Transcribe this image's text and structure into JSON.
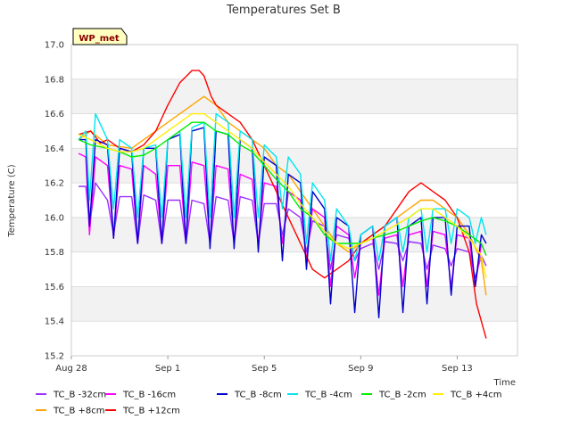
{
  "chart_data": {
    "type": "line",
    "title": "Temperatures Set B",
    "xlabel": "Time",
    "ylabel": "Temperature (C)",
    "badge": "WP_met",
    "x_unit": "days since Aug 28",
    "xlim": [
      0,
      18.5
    ],
    "ylim": [
      15.2,
      17.0
    ],
    "y_ticks": [
      15.2,
      15.4,
      15.6,
      15.8,
      16.0,
      16.2,
      16.4,
      16.6,
      16.8,
      17.0
    ],
    "y_tick_labels": [
      "15.2",
      "15.4",
      "15.6",
      "15.8",
      "16.0",
      "16.2",
      "16.4",
      "16.6",
      "16.8",
      "17.0"
    ],
    "x_ticks": [
      {
        "x": 0,
        "label": "Aug 28"
      },
      {
        "x": 4,
        "label": "Sep 1"
      },
      {
        "x": 8,
        "label": "Sep 5"
      },
      {
        "x": 12,
        "label": "Sep 9"
      },
      {
        "x": 16,
        "label": "Sep 13"
      }
    ],
    "grid": true,
    "legend_position": "bottom",
    "series": [
      {
        "name": "TC_B -32cm",
        "color": "#9b30ff",
        "x": [
          0.3,
          0.6,
          0.75,
          1,
          1.5,
          1.75,
          2,
          2.5,
          2.75,
          3,
          3.5,
          3.75,
          4,
          4.5,
          4.75,
          5,
          5.5,
          5.75,
          6,
          6.5,
          6.75,
          7,
          7.5,
          7.75,
          8,
          8.5,
          8.75,
          9,
          9.5,
          9.75,
          10,
          10.5,
          10.75,
          11,
          11.5,
          11.75,
          12,
          12.5,
          12.75,
          13,
          13.5,
          13.75,
          14,
          14.5,
          14.75,
          15,
          15.5,
          15.75,
          16,
          16.5,
          16.75,
          17,
          17.2
        ],
        "y": [
          16.18,
          16.18,
          15.95,
          16.2,
          16.1,
          15.9,
          16.12,
          16.12,
          15.85,
          16.13,
          16.1,
          15.85,
          16.1,
          16.1,
          15.85,
          16.1,
          16.08,
          15.85,
          16.12,
          16.1,
          15.85,
          16.12,
          16.1,
          15.85,
          16.08,
          16.08,
          15.9,
          16.05,
          16.0,
          15.8,
          15.98,
          15.95,
          15.7,
          15.9,
          15.88,
          15.75,
          15.82,
          15.85,
          15.7,
          15.86,
          15.85,
          15.75,
          15.86,
          15.85,
          15.7,
          15.84,
          15.82,
          15.72,
          15.82,
          15.8,
          15.65,
          15.78,
          15.72
        ]
      },
      {
        "name": "TC_B +8cm",
        "color": "#ffa500",
        "x": [
          0.3,
          0.8,
          1.5,
          2.5,
          3,
          3.5,
          4,
          4.5,
          5,
          5.5,
          6,
          6.5,
          7,
          7.5,
          8,
          8.5,
          9,
          9.5,
          10,
          10.5,
          11,
          11.5,
          12,
          12.5,
          13,
          13.5,
          14,
          14.5,
          15,
          15.5,
          16,
          16.5,
          17,
          17.2
        ],
        "y": [
          16.45,
          16.5,
          16.42,
          16.4,
          16.45,
          16.5,
          16.55,
          16.6,
          16.65,
          16.7,
          16.65,
          16.55,
          16.5,
          16.45,
          16.4,
          16.3,
          16.25,
          16.15,
          16.05,
          15.95,
          15.85,
          15.8,
          15.85,
          15.9,
          15.95,
          16.0,
          16.05,
          16.1,
          16.1,
          16.05,
          16.0,
          15.9,
          15.75,
          15.55
        ]
      },
      {
        "name": "TC_B -16cm",
        "color": "#ff00ff",
        "x": [
          0.3,
          0.6,
          0.75,
          1,
          1.5,
          1.75,
          2,
          2.5,
          2.75,
          3,
          3.5,
          3.75,
          4,
          4.5,
          4.75,
          5,
          5.5,
          5.75,
          6,
          6.5,
          6.75,
          7,
          7.5,
          7.75,
          8,
          8.5,
          8.75,
          9,
          9.5,
          9.75,
          10,
          10.5,
          10.75,
          11,
          11.5,
          11.75,
          12,
          12.5,
          12.75,
          13,
          13.5,
          13.75,
          14,
          14.5,
          14.75,
          15,
          15.5,
          15.75,
          16,
          16.5,
          16.75,
          17,
          17.2
        ],
        "y": [
          16.37,
          16.35,
          15.9,
          16.35,
          16.3,
          15.88,
          16.3,
          16.28,
          15.85,
          16.3,
          16.25,
          15.85,
          16.3,
          16.3,
          15.85,
          16.32,
          16.3,
          15.85,
          16.3,
          16.28,
          15.85,
          16.25,
          16.22,
          15.85,
          16.2,
          16.18,
          15.85,
          16.15,
          16.1,
          15.75,
          16.05,
          16.0,
          15.6,
          15.95,
          15.9,
          15.65,
          15.85,
          15.88,
          15.55,
          15.88,
          15.9,
          15.6,
          15.9,
          15.92,
          15.6,
          15.92,
          15.9,
          15.6,
          15.9,
          15.88,
          15.6,
          15.85,
          15.78
        ]
      },
      {
        "name": "TC_B +12cm",
        "color": "#ff0000",
        "x": [
          0.3,
          0.8,
          1.2,
          1.5,
          2,
          2.5,
          3,
          3.5,
          4,
          4.5,
          5,
          5.3,
          5.5,
          5.8,
          6,
          6.5,
          7,
          7.5,
          8,
          8.5,
          9,
          9.5,
          10,
          10.5,
          11,
          11.5,
          12,
          12.5,
          13,
          13.5,
          14,
          14.5,
          15,
          15.5,
          16,
          16.5,
          16.8,
          17,
          17.2
        ],
        "y": [
          16.48,
          16.5,
          16.43,
          16.45,
          16.4,
          16.38,
          16.42,
          16.5,
          16.65,
          16.78,
          16.85,
          16.85,
          16.82,
          16.7,
          16.65,
          16.6,
          16.55,
          16.45,
          16.3,
          16.15,
          16.0,
          15.85,
          15.7,
          15.65,
          15.7,
          15.75,
          15.85,
          15.9,
          15.95,
          16.05,
          16.15,
          16.2,
          16.15,
          16.1,
          16.0,
          15.8,
          15.5,
          15.4,
          15.3
        ]
      },
      {
        "name": "TC_B -8cm",
        "color": "#0000cd",
        "x": [
          0.3,
          0.6,
          0.75,
          1,
          1.5,
          1.75,
          2,
          2.5,
          2.75,
          3,
          3.5,
          3.75,
          4,
          4.5,
          4.75,
          5,
          5.5,
          5.75,
          6,
          6.5,
          6.75,
          7,
          7.5,
          7.75,
          8,
          8.5,
          8.75,
          9,
          9.5,
          9.75,
          10,
          10.5,
          10.75,
          11,
          11.5,
          11.75,
          12,
          12.5,
          12.75,
          13,
          13.5,
          13.75,
          14,
          14.5,
          14.75,
          15,
          15.5,
          15.75,
          16,
          16.5,
          16.75,
          17,
          17.2
        ],
        "y": [
          16.45,
          16.45,
          15.95,
          16.45,
          16.42,
          15.88,
          16.4,
          16.38,
          15.85,
          16.4,
          16.4,
          15.85,
          16.45,
          16.48,
          15.85,
          16.5,
          16.52,
          15.82,
          16.5,
          16.48,
          15.82,
          16.45,
          16.4,
          15.8,
          16.35,
          16.3,
          15.75,
          16.25,
          16.2,
          15.7,
          16.15,
          16.05,
          15.5,
          16.0,
          15.95,
          15.45,
          15.9,
          15.95,
          15.42,
          15.95,
          16.0,
          15.45,
          15.95,
          16.0,
          15.5,
          16.0,
          16.0,
          15.55,
          15.95,
          15.95,
          15.6,
          15.9,
          15.85
        ]
      },
      {
        "name": "TC_B -4cm",
        "color": "#00e5ee",
        "x": [
          0.3,
          0.6,
          0.75,
          1,
          1.5,
          1.75,
          2,
          2.5,
          2.75,
          3,
          3.5,
          3.75,
          4,
          4.5,
          4.75,
          5,
          5.5,
          5.75,
          6,
          6.5,
          6.75,
          7,
          7.5,
          7.75,
          8,
          8.5,
          8.75,
          9,
          9.5,
          9.75,
          10,
          10.5,
          10.75,
          11,
          11.5,
          11.75,
          12,
          12.5,
          12.75,
          13,
          13.5,
          13.75,
          14,
          14.5,
          14.75,
          15,
          15.5,
          15.75,
          16,
          16.5,
          16.75,
          17,
          17.2
        ],
        "y": [
          16.45,
          16.5,
          16.1,
          16.6,
          16.45,
          16.05,
          16.45,
          16.4,
          16.0,
          16.4,
          16.42,
          16.0,
          16.45,
          16.5,
          16.0,
          16.52,
          16.55,
          16.0,
          16.6,
          16.55,
          16.0,
          16.5,
          16.45,
          16.0,
          16.42,
          16.35,
          16.05,
          16.35,
          16.25,
          15.85,
          16.2,
          16.1,
          15.75,
          16.05,
          15.95,
          15.75,
          15.9,
          15.95,
          15.75,
          15.95,
          16.0,
          15.8,
          16.0,
          16.05,
          15.8,
          16.05,
          16.05,
          15.85,
          16.05,
          16.0,
          15.85,
          16.0,
          15.9
        ]
      },
      {
        "name": "TC_B -2cm",
        "color": "#00ee00",
        "x": [
          0.3,
          0.8,
          1.5,
          2,
          2.5,
          3,
          3.5,
          4,
          4.5,
          5,
          5.5,
          6,
          6.5,
          7,
          7.5,
          8,
          8.5,
          9,
          9.5,
          10,
          10.5,
          11,
          11.5,
          12,
          12.5,
          13,
          13.5,
          14,
          14.5,
          15,
          15.5,
          16,
          16.5,
          17,
          17.2
        ],
        "y": [
          16.45,
          16.42,
          16.4,
          16.38,
          16.35,
          16.36,
          16.4,
          16.45,
          16.5,
          16.55,
          16.55,
          16.5,
          16.48,
          16.42,
          16.38,
          16.3,
          16.22,
          16.15,
          16.05,
          16.0,
          15.9,
          15.85,
          15.85,
          15.85,
          15.88,
          15.9,
          15.92,
          15.95,
          15.98,
          16.0,
          15.98,
          15.95,
          15.9,
          15.85,
          15.78
        ]
      },
      {
        "name": "TC_B +4cm",
        "color": "#ffee00",
        "x": [
          0.3,
          0.8,
          1.5,
          2,
          2.5,
          3,
          3.5,
          4,
          4.5,
          5,
          5.5,
          6,
          6.5,
          7,
          7.5,
          8,
          8.5,
          9,
          9.5,
          10,
          10.5,
          11,
          11.5,
          12,
          12.5,
          13,
          13.5,
          14,
          14.5,
          15,
          15.5,
          16,
          16.5,
          17,
          17.2
        ],
        "y": [
          16.48,
          16.45,
          16.4,
          16.38,
          16.38,
          16.4,
          16.45,
          16.5,
          16.55,
          16.6,
          16.6,
          16.55,
          16.5,
          16.45,
          16.4,
          16.32,
          16.25,
          16.18,
          16.08,
          16.0,
          15.92,
          15.85,
          15.82,
          15.85,
          15.88,
          15.92,
          15.96,
          16.0,
          16.05,
          16.05,
          16.0,
          15.95,
          15.88,
          15.78,
          15.65
        ]
      }
    ]
  }
}
